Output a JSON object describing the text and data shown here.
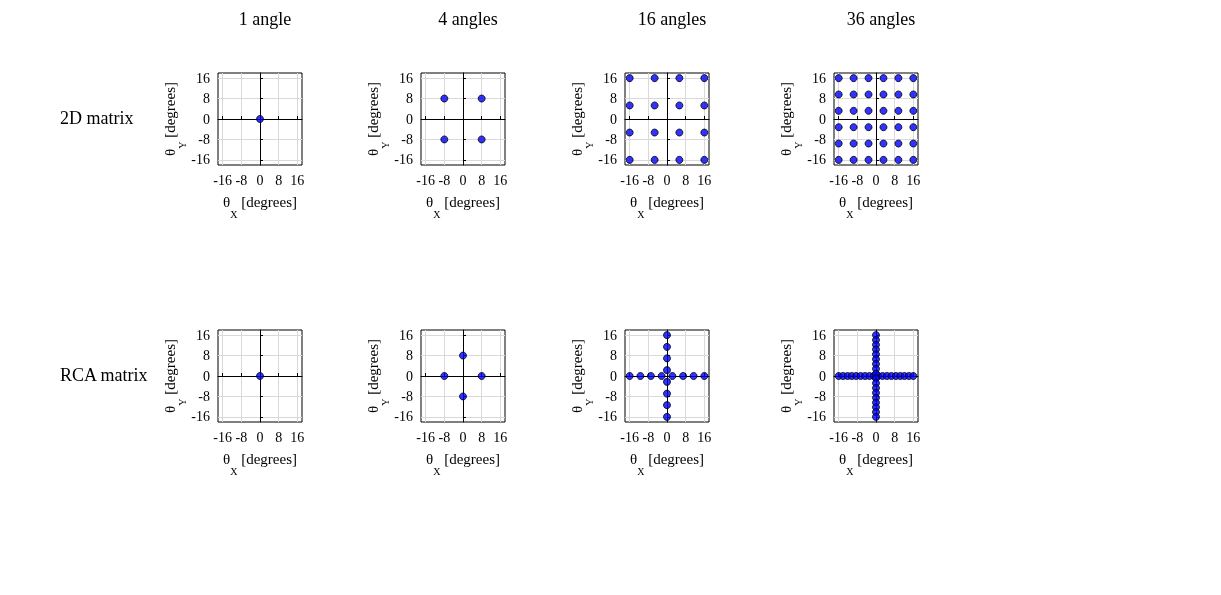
{
  "chart_data": [
    {
      "type": "scatter",
      "title": "1 angle",
      "annotations": [
        "2D matrix"
      ],
      "xlabel": "θ$_{X}$ [degrees]",
      "ylabel": "θ$_{Y}$ [degrees]",
      "xlim": [
        -18,
        18
      ],
      "ylim": [
        -18,
        18
      ],
      "xticks": [
        -16,
        -8,
        0,
        8,
        16
      ],
      "yticks": [
        -16,
        -8,
        0,
        8,
        16
      ],
      "grid": true,
      "marker": "circle",
      "color": "#0000ff",
      "x": [
        0
      ],
      "values": [
        0
      ]
    },
    {
      "type": "scatter",
      "title": "4 angles",
      "xlabel": "θ$_{X}$ [degrees]",
      "ylabel": "θ$_{Y}$ [degrees]",
      "xlim": [
        -18,
        18
      ],
      "ylim": [
        -18,
        18
      ],
      "xticks": [
        -16,
        -8,
        0,
        8,
        16
      ],
      "yticks": [
        -16,
        -8,
        0,
        8,
        16
      ],
      "grid": true,
      "marker": "circle",
      "color": "#0000ff",
      "x": [
        -8,
        8,
        -8,
        8
      ],
      "values": [
        8,
        8,
        -8,
        -8
      ]
    },
    {
      "type": "scatter",
      "title": "16 angles",
      "xlabel": "θ$_{X}$ [degrees]",
      "ylabel": "θ$_{Y}$ [degrees]",
      "xlim": [
        -18,
        18
      ],
      "ylim": [
        -18,
        18
      ],
      "xticks": [
        -16,
        -8,
        0,
        8,
        16
      ],
      "yticks": [
        -16,
        -8,
        0,
        8,
        16
      ],
      "grid": true,
      "marker": "circle",
      "color": "#0000ff",
      "x": [
        -16,
        -5.3,
        5.3,
        16,
        -16,
        -5.3,
        5.3,
        16,
        -16,
        -5.3,
        5.3,
        16,
        -16,
        -5.3,
        5.3,
        16
      ],
      "values": [
        16,
        16,
        16,
        16,
        5.3,
        5.3,
        5.3,
        5.3,
        -5.3,
        -5.3,
        -5.3,
        -5.3,
        -16,
        -16,
        -16,
        -16
      ]
    },
    {
      "type": "scatter",
      "title": "36 angles",
      "xlabel": "θ$_{X}$ [degrees]",
      "ylabel": "θ$_{Y}$ [degrees]",
      "xlim": [
        -18,
        18
      ],
      "ylim": [
        -18,
        18
      ],
      "xticks": [
        -16,
        -8,
        0,
        8,
        16
      ],
      "yticks": [
        -16,
        -8,
        0,
        8,
        16
      ],
      "grid": true,
      "marker": "circle",
      "color": "#0000ff",
      "x": [
        -16,
        -9.6,
        -3.2,
        3.2,
        9.6,
        16,
        -16,
        -9.6,
        -3.2,
        3.2,
        9.6,
        16,
        -16,
        -9.6,
        -3.2,
        3.2,
        9.6,
        16,
        -16,
        -9.6,
        -3.2,
        3.2,
        9.6,
        16,
        -16,
        -9.6,
        -3.2,
        3.2,
        9.6,
        16,
        -16,
        -9.6,
        -3.2,
        3.2,
        9.6,
        16
      ],
      "values": [
        16,
        16,
        16,
        16,
        16,
        16,
        9.6,
        9.6,
        9.6,
        9.6,
        9.6,
        9.6,
        3.2,
        3.2,
        3.2,
        3.2,
        3.2,
        3.2,
        -3.2,
        -3.2,
        -3.2,
        -3.2,
        -3.2,
        -3.2,
        -9.6,
        -9.6,
        -9.6,
        -9.6,
        -9.6,
        -9.6,
        -16,
        -16,
        -16,
        -16,
        -16,
        -16
      ]
    },
    {
      "type": "scatter",
      "annotations": [
        "RCA matrix"
      ],
      "xlabel": "θ$_{X}$ [degrees]",
      "ylabel": "θ$_{Y}$ [degrees]",
      "xlim": [
        -18,
        18
      ],
      "ylim": [
        -18,
        18
      ],
      "xticks": [
        -16,
        -8,
        0,
        8,
        16
      ],
      "yticks": [
        -16,
        -8,
        0,
        8,
        16
      ],
      "grid": true,
      "marker": "circle",
      "color": "#0000ff",
      "x": [
        0
      ],
      "values": [
        0
      ]
    },
    {
      "type": "scatter",
      "xlabel": "θ$_{X}$ [degrees]",
      "ylabel": "θ$_{Y}$ [degrees]",
      "xlim": [
        -18,
        18
      ],
      "ylim": [
        -18,
        18
      ],
      "xticks": [
        -16,
        -8,
        0,
        8,
        16
      ],
      "yticks": [
        -16,
        -8,
        0,
        8,
        16
      ],
      "grid": true,
      "marker": "circle",
      "color": "#0000ff",
      "x": [
        -8,
        8,
        0,
        0
      ],
      "values": [
        0,
        0,
        8,
        -8
      ]
    },
    {
      "type": "scatter",
      "xlabel": "θ$_{X}$ [degrees]",
      "ylabel": "θ$_{Y}$ [degrees]",
      "xlim": [
        -18,
        18
      ],
      "ylim": [
        -18,
        18
      ],
      "xticks": [
        -16,
        -8,
        0,
        8,
        16
      ],
      "yticks": [
        -16,
        -8,
        0,
        8,
        16
      ],
      "grid": true,
      "marker": "circle",
      "color": "#0000ff",
      "x": [
        -16,
        -11.4,
        -6.9,
        -2.3,
        2.3,
        6.9,
        11.4,
        16,
        0,
        0,
        0,
        0,
        0,
        0,
        0,
        0
      ],
      "values": [
        0,
        0,
        0,
        0,
        0,
        0,
        0,
        0,
        16,
        11.4,
        6.9,
        2.3,
        -2.3,
        -6.9,
        -11.4,
        -16
      ]
    },
    {
      "type": "scatter",
      "xlabel": "θ$_{X}$ [degrees]",
      "ylabel": "θ$_{Y}$ [degrees]",
      "xlim": [
        -18,
        18
      ],
      "ylim": [
        -18,
        18
      ],
      "xticks": [
        -16,
        -8,
        0,
        8,
        16
      ],
      "yticks": [
        -16,
        -8,
        0,
        8,
        16
      ],
      "grid": true,
      "marker": "circle",
      "color": "#0000ff",
      "x": [
        -16,
        -14.1,
        -12.2,
        -10.4,
        -8.5,
        -6.6,
        -4.7,
        -2.8,
        -0.9,
        0.9,
        2.8,
        4.7,
        6.6,
        8.5,
        10.4,
        12.2,
        14.1,
        16,
        0,
        0,
        0,
        0,
        0,
        0,
        0,
        0,
        0,
        0,
        0,
        0,
        0,
        0,
        0,
        0,
        0,
        0
      ],
      "values": [
        0,
        0,
        0,
        0,
        0,
        0,
        0,
        0,
        0,
        0,
        0,
        0,
        0,
        0,
        0,
        0,
        0,
        0,
        16,
        14.1,
        12.2,
        10.4,
        8.5,
        6.6,
        4.7,
        2.8,
        0.9,
        -0.9,
        -2.8,
        -4.7,
        -6.6,
        -8.5,
        -10.4,
        -12.2,
        -14.1,
        -16
      ]
    }
  ]
}
